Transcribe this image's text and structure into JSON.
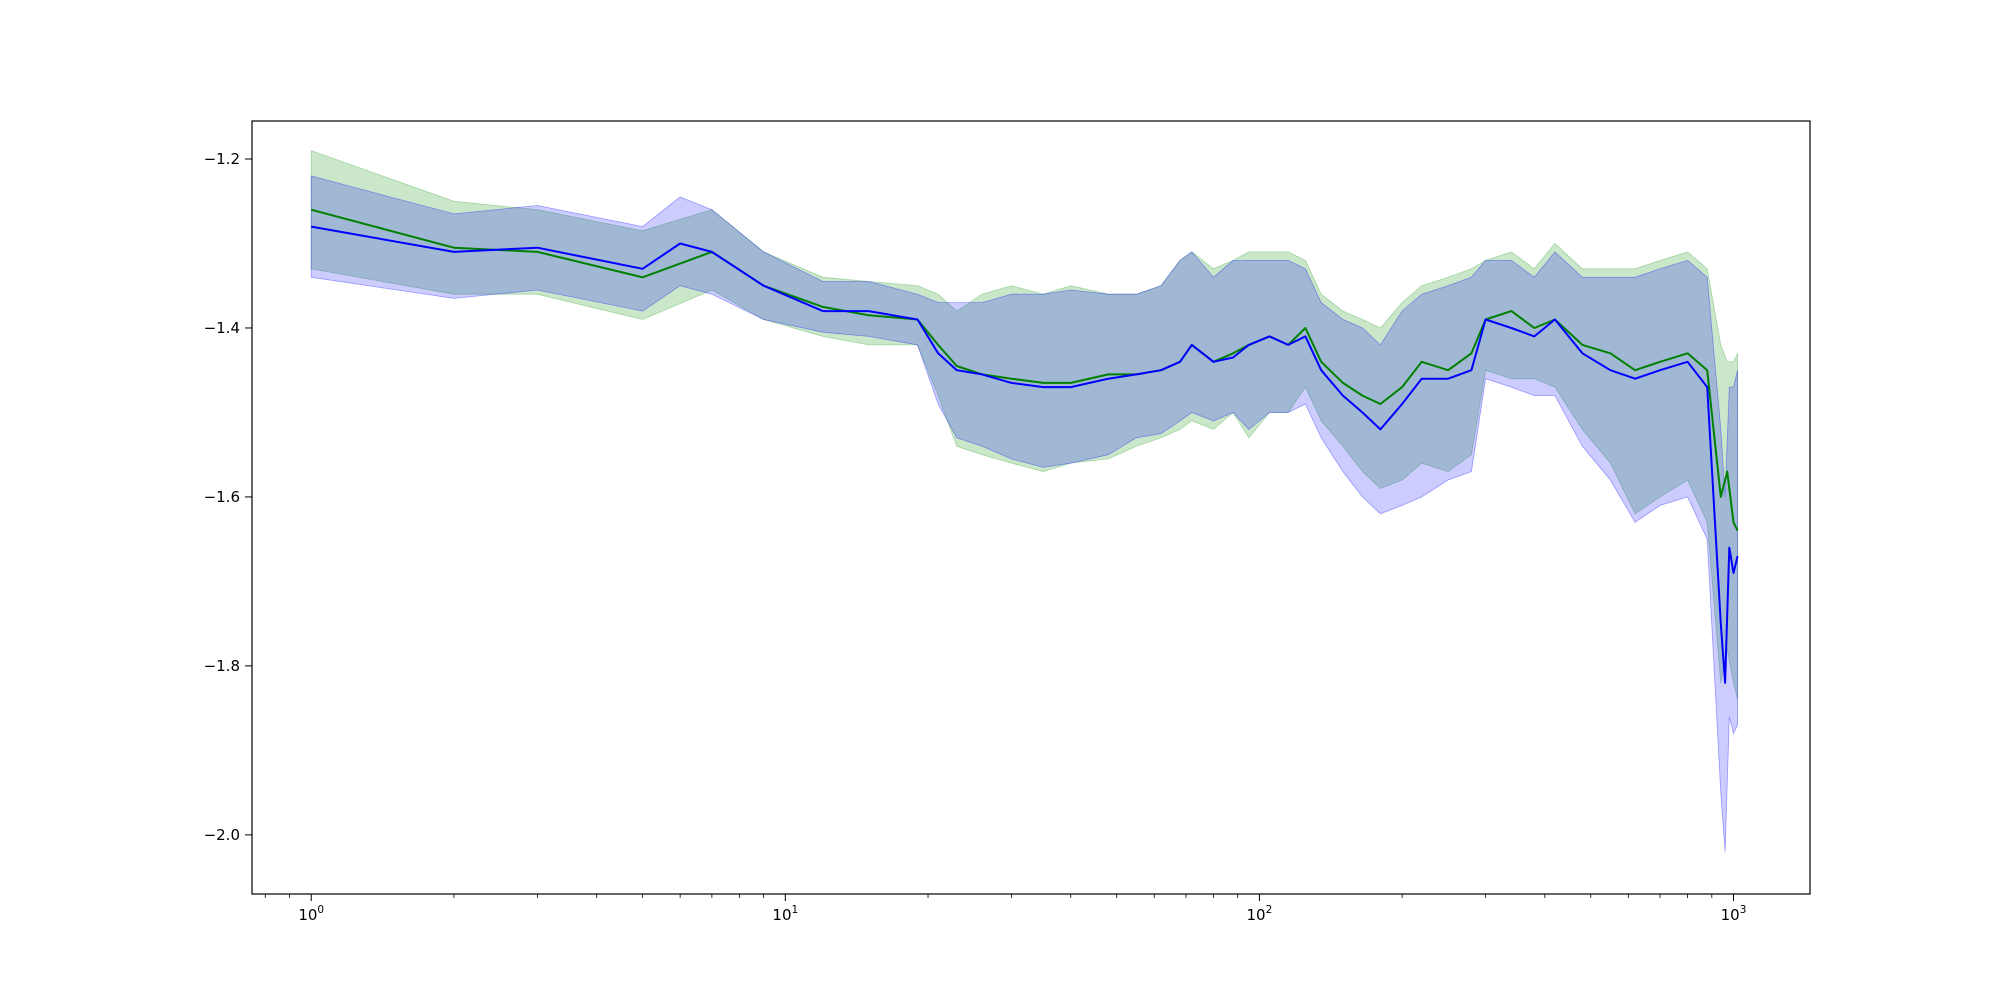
{
  "chart_data": {
    "type": "line",
    "title": "",
    "xlabel": "",
    "ylabel": "",
    "x_scale": "log",
    "xlim": [
      0.75,
      1450
    ],
    "ylim": [
      -2.07,
      -1.155
    ],
    "grid": false,
    "x_ticks": [
      {
        "value": 1,
        "base": "10",
        "exp": "0"
      },
      {
        "value": 10,
        "base": "10",
        "exp": "1"
      },
      {
        "value": 100,
        "base": "10",
        "exp": "2"
      },
      {
        "value": 1000,
        "base": "10",
        "exp": "3"
      }
    ],
    "y_ticks": [
      {
        "value": -1.2,
        "label": "−1.2"
      },
      {
        "value": -1.4,
        "label": "−1.4"
      },
      {
        "value": -1.6,
        "label": "−1.6"
      },
      {
        "value": -1.8,
        "label": "−1.8"
      },
      {
        "value": -2.0,
        "label": "−2.0"
      }
    ],
    "series": [
      {
        "color": "#008000",
        "band_color": "#2ca02c",
        "band_opacity": 0.25,
        "points": [
          [
            1,
            -1.26,
            -1.19,
            -1.33
          ],
          [
            2,
            -1.305,
            -1.25,
            -1.36
          ],
          [
            3,
            -1.31,
            -1.26,
            -1.36
          ],
          [
            5,
            -1.34,
            -1.285,
            -1.39
          ],
          [
            7,
            -1.31,
            -1.26,
            -1.355
          ],
          [
            9,
            -1.35,
            -1.31,
            -1.39
          ],
          [
            12,
            -1.375,
            -1.34,
            -1.41
          ],
          [
            15,
            -1.385,
            -1.345,
            -1.42
          ],
          [
            19,
            -1.39,
            -1.35,
            -1.42
          ],
          [
            21,
            -1.42,
            -1.36,
            -1.48
          ],
          [
            23,
            -1.445,
            -1.38,
            -1.54
          ],
          [
            26,
            -1.455,
            -1.36,
            -1.55
          ],
          [
            30,
            -1.46,
            -1.35,
            -1.56
          ],
          [
            35,
            -1.465,
            -1.36,
            -1.57
          ],
          [
            40,
            -1.465,
            -1.35,
            -1.56
          ],
          [
            48,
            -1.455,
            -1.36,
            -1.555
          ],
          [
            55,
            -1.455,
            -1.36,
            -1.54
          ],
          [
            62,
            -1.45,
            -1.35,
            -1.53
          ],
          [
            68,
            -1.44,
            -1.32,
            -1.52
          ],
          [
            72,
            -1.42,
            -1.31,
            -1.51
          ],
          [
            80,
            -1.44,
            -1.33,
            -1.52
          ],
          [
            88,
            -1.43,
            -1.32,
            -1.5
          ],
          [
            95,
            -1.42,
            -1.31,
            -1.53
          ],
          [
            105,
            -1.41,
            -1.31,
            -1.5
          ],
          [
            115,
            -1.42,
            -1.31,
            -1.5
          ],
          [
            125,
            -1.4,
            -1.32,
            -1.47
          ],
          [
            135,
            -1.44,
            -1.36,
            -1.51
          ],
          [
            150,
            -1.465,
            -1.38,
            -1.54
          ],
          [
            165,
            -1.48,
            -1.39,
            -1.57
          ],
          [
            180,
            -1.49,
            -1.4,
            -1.59
          ],
          [
            200,
            -1.47,
            -1.37,
            -1.58
          ],
          [
            220,
            -1.44,
            -1.35,
            -1.56
          ],
          [
            250,
            -1.45,
            -1.34,
            -1.57
          ],
          [
            280,
            -1.43,
            -1.33,
            -1.55
          ],
          [
            300,
            -1.39,
            -1.32,
            -1.45
          ],
          [
            340,
            -1.38,
            -1.31,
            -1.46
          ],
          [
            380,
            -1.4,
            -1.33,
            -1.46
          ],
          [
            420,
            -1.39,
            -1.3,
            -1.47
          ],
          [
            480,
            -1.42,
            -1.33,
            -1.52
          ],
          [
            550,
            -1.43,
            -1.33,
            -1.56
          ],
          [
            620,
            -1.45,
            -1.33,
            -1.62
          ],
          [
            700,
            -1.44,
            -1.32,
            -1.6
          ],
          [
            800,
            -1.43,
            -1.31,
            -1.58
          ],
          [
            880,
            -1.45,
            -1.33,
            -1.63
          ],
          [
            940,
            -1.6,
            -1.42,
            -1.82
          ],
          [
            970,
            -1.57,
            -1.44,
            -1.78
          ],
          [
            1000,
            -1.63,
            -1.44,
            -1.82
          ],
          [
            1020,
            -1.64,
            -1.43,
            -1.84
          ]
        ]
      },
      {
        "color": "#0000ff",
        "band_color": "#0000ff",
        "band_opacity": 0.2,
        "points": [
          [
            1,
            -1.28,
            -1.22,
            -1.34
          ],
          [
            2,
            -1.31,
            -1.265,
            -1.365
          ],
          [
            3,
            -1.305,
            -1.255,
            -1.355
          ],
          [
            5,
            -1.33,
            -1.28,
            -1.38
          ],
          [
            6,
            -1.3,
            -1.245,
            -1.35
          ],
          [
            7,
            -1.31,
            -1.26,
            -1.36
          ],
          [
            9,
            -1.35,
            -1.31,
            -1.39
          ],
          [
            12,
            -1.38,
            -1.345,
            -1.405
          ],
          [
            15,
            -1.38,
            -1.345,
            -1.41
          ],
          [
            19,
            -1.39,
            -1.36,
            -1.42
          ],
          [
            21,
            -1.43,
            -1.37,
            -1.49
          ],
          [
            23,
            -1.45,
            -1.37,
            -1.53
          ],
          [
            26,
            -1.455,
            -1.37,
            -1.54
          ],
          [
            30,
            -1.465,
            -1.36,
            -1.555
          ],
          [
            35,
            -1.47,
            -1.36,
            -1.565
          ],
          [
            40,
            -1.47,
            -1.355,
            -1.56
          ],
          [
            48,
            -1.46,
            -1.36,
            -1.55
          ],
          [
            55,
            -1.455,
            -1.36,
            -1.53
          ],
          [
            62,
            -1.45,
            -1.35,
            -1.525
          ],
          [
            68,
            -1.44,
            -1.32,
            -1.51
          ],
          [
            72,
            -1.42,
            -1.31,
            -1.5
          ],
          [
            80,
            -1.44,
            -1.34,
            -1.51
          ],
          [
            88,
            -1.435,
            -1.32,
            -1.5
          ],
          [
            95,
            -1.42,
            -1.32,
            -1.52
          ],
          [
            105,
            -1.41,
            -1.32,
            -1.5
          ],
          [
            115,
            -1.42,
            -1.32,
            -1.5
          ],
          [
            125,
            -1.41,
            -1.33,
            -1.49
          ],
          [
            135,
            -1.45,
            -1.37,
            -1.53
          ],
          [
            150,
            -1.48,
            -1.39,
            -1.57
          ],
          [
            165,
            -1.5,
            -1.4,
            -1.6
          ],
          [
            180,
            -1.52,
            -1.42,
            -1.62
          ],
          [
            200,
            -1.49,
            -1.38,
            -1.61
          ],
          [
            220,
            -1.46,
            -1.36,
            -1.6
          ],
          [
            250,
            -1.46,
            -1.35,
            -1.58
          ],
          [
            280,
            -1.45,
            -1.34,
            -1.57
          ],
          [
            300,
            -1.39,
            -1.32,
            -1.46
          ],
          [
            340,
            -1.4,
            -1.32,
            -1.47
          ],
          [
            380,
            -1.41,
            -1.34,
            -1.48
          ],
          [
            420,
            -1.39,
            -1.31,
            -1.48
          ],
          [
            480,
            -1.43,
            -1.34,
            -1.54
          ],
          [
            550,
            -1.45,
            -1.34,
            -1.58
          ],
          [
            620,
            -1.46,
            -1.34,
            -1.63
          ],
          [
            700,
            -1.45,
            -1.33,
            -1.61
          ],
          [
            800,
            -1.44,
            -1.32,
            -1.6
          ],
          [
            880,
            -1.47,
            -1.34,
            -1.65
          ],
          [
            940,
            -1.75,
            -1.52,
            -1.95
          ],
          [
            960,
            -1.82,
            -1.6,
            -2.02
          ],
          [
            980,
            -1.66,
            -1.47,
            -1.86
          ],
          [
            1000,
            -1.69,
            -1.47,
            -1.88
          ],
          [
            1020,
            -1.67,
            -1.45,
            -1.87
          ]
        ]
      }
    ]
  }
}
